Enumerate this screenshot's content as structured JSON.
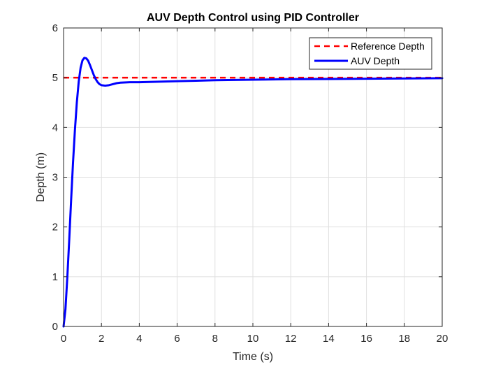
{
  "chart_data": {
    "type": "line",
    "title": "AUV Depth Control using PID Controller",
    "xlabel": "Time (s)",
    "ylabel": "Depth (m)",
    "xlim": [
      0,
      20
    ],
    "ylim": [
      0,
      6
    ],
    "xticks": [
      "0",
      "2",
      "4",
      "6",
      "8",
      "10",
      "12",
      "14",
      "16",
      "18",
      "20"
    ],
    "yticks": [
      "0",
      "1",
      "2",
      "3",
      "4",
      "5",
      "6"
    ],
    "grid": true,
    "legend_position": "top-right",
    "series": [
      {
        "name": "Reference Depth",
        "color": "#ff0000",
        "style": "dashed",
        "x": [
          0,
          20
        ],
        "y": [
          5,
          5
        ]
      },
      {
        "name": "AUV Depth",
        "color": "#0000ff",
        "style": "solid",
        "x": [
          0,
          0.1,
          0.2,
          0.3,
          0.4,
          0.5,
          0.6,
          0.7,
          0.8,
          0.9,
          1.0,
          1.1,
          1.2,
          1.3,
          1.4,
          1.5,
          1.6,
          1.7,
          1.8,
          1.9,
          2.0,
          2.2,
          2.4,
          2.6,
          2.8,
          3.0,
          3.5,
          4.0,
          5.0,
          6.0,
          7.0,
          8.0,
          10.0,
          12.0,
          14.0,
          16.0,
          18.0,
          20.0
        ],
        "y": [
          0,
          0.35,
          1.0,
          1.75,
          2.55,
          3.3,
          3.95,
          4.5,
          4.92,
          5.2,
          5.35,
          5.4,
          5.39,
          5.34,
          5.25,
          5.15,
          5.05,
          4.97,
          4.91,
          4.87,
          4.85,
          4.84,
          4.85,
          4.87,
          4.89,
          4.9,
          4.91,
          4.91,
          4.92,
          4.93,
          4.94,
          4.95,
          4.96,
          4.97,
          4.975,
          4.98,
          4.985,
          4.99
        ]
      }
    ]
  }
}
